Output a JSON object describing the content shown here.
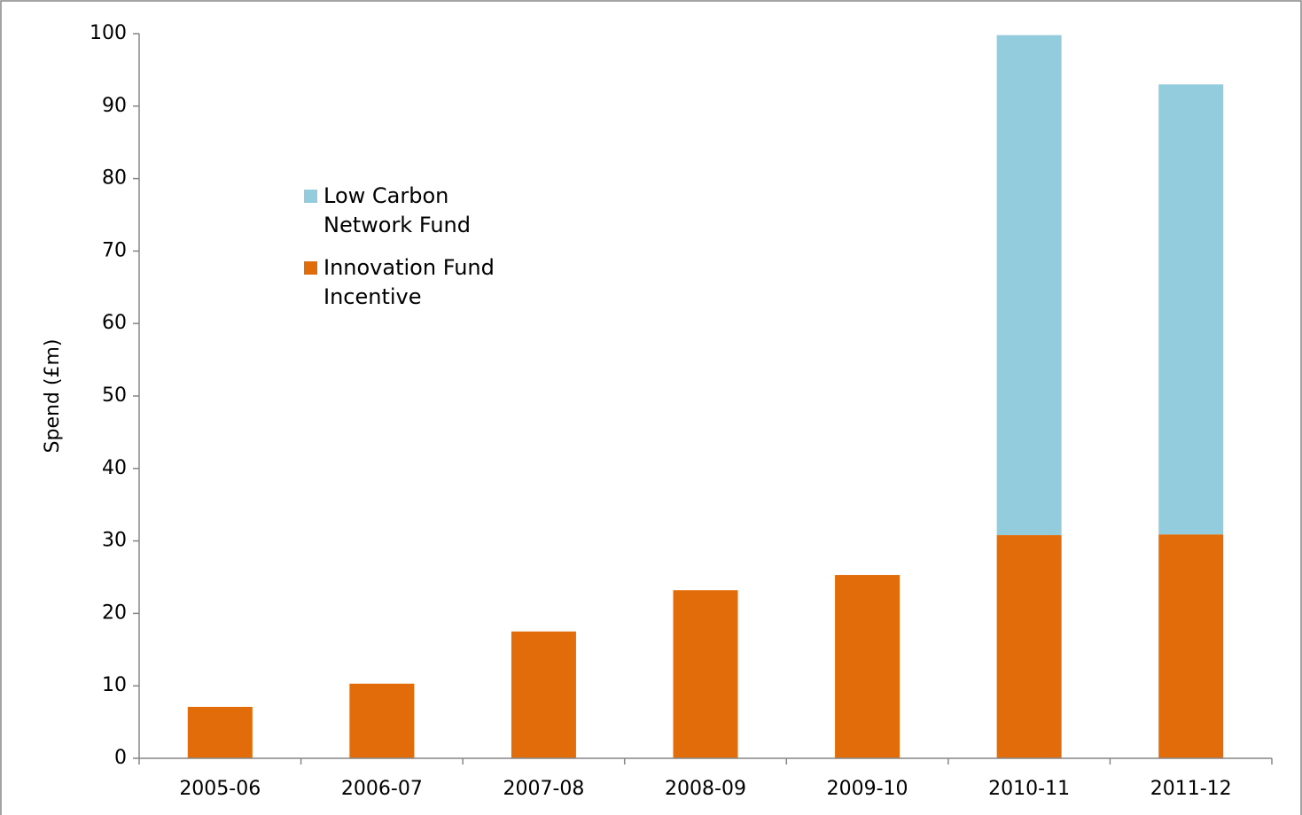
{
  "chart_data": {
    "type": "stacked_bar",
    "y_label": "Spend (£m)",
    "categories": [
      "2005-06",
      "2006-07",
      "2007-08",
      "2008-09",
      "2009-10",
      "2010-11",
      "2011-12"
    ],
    "series": [
      {
        "name": "Innovation Fund Incentive",
        "color": "#e36c0a",
        "values": [
          7.1,
          10.3,
          17.5,
          23.2,
          25.3,
          30.8,
          30.9
        ]
      },
      {
        "name": "Low Carbon Network Fund",
        "color": "#93cddd",
        "values": [
          null,
          null,
          null,
          null,
          null,
          69.0,
          62.1
        ]
      }
    ],
    "ylim": [
      0,
      100
    ],
    "yticks": [
      0,
      10,
      20,
      30,
      40,
      50,
      60,
      70,
      80,
      90,
      100
    ]
  }
}
